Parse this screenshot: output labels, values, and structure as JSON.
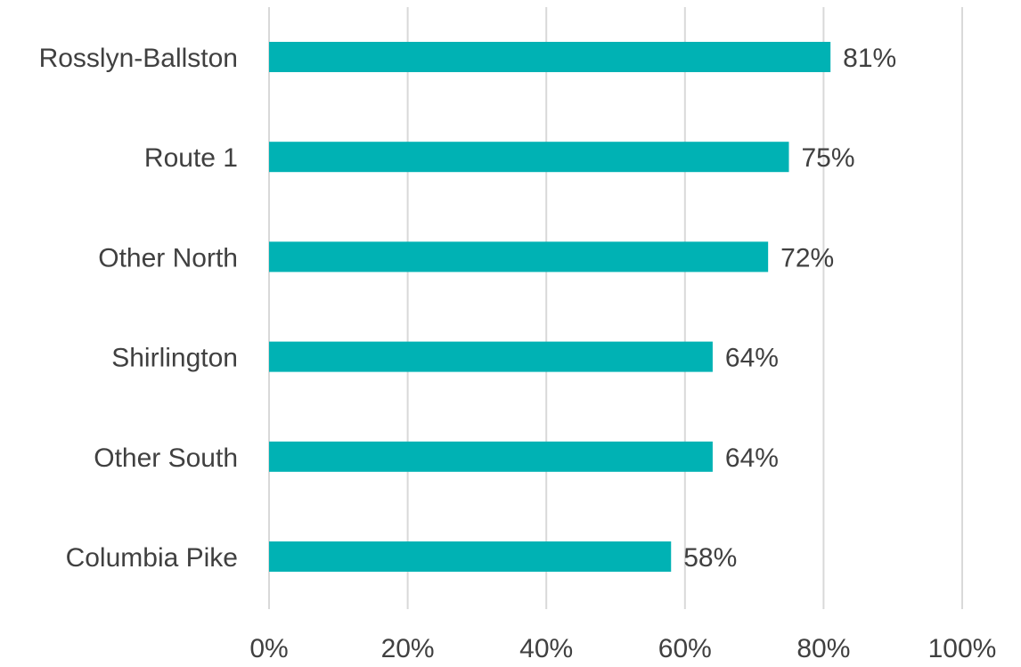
{
  "colors": {
    "bar": "#00b2b4",
    "gridline": "#d9d9d9",
    "text": "#404040"
  },
  "chart_data": {
    "type": "bar",
    "orientation": "horizontal",
    "categories": [
      "Rosslyn-Ballston",
      "Route 1",
      "Other North",
      "Shirlington",
      "Other South",
      "Columbia Pike"
    ],
    "values": [
      81,
      75,
      72,
      64,
      64,
      58
    ],
    "data_labels": [
      "81%",
      "75%",
      "72%",
      "64%",
      "64%",
      "58%"
    ],
    "x_ticks": [
      0,
      20,
      40,
      60,
      80,
      100
    ],
    "x_tick_labels": [
      "0%",
      "20%",
      "40%",
      "60%",
      "80%",
      "100%"
    ],
    "xlim": [
      0,
      100
    ],
    "unit": "%",
    "grid": "vertical",
    "legend": "none"
  }
}
